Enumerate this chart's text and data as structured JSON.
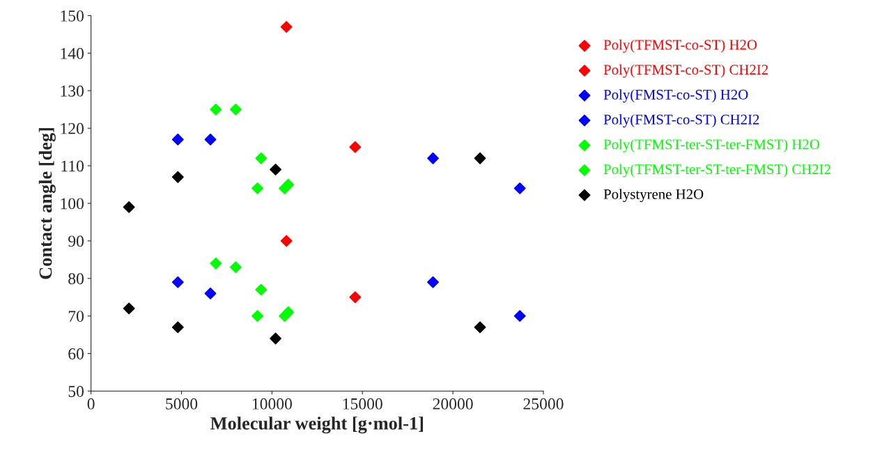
{
  "chart_data": {
    "type": "scatter",
    "xlabel": "Molecular weight [g·mol-1]",
    "ylabel": "Contact angle [deg]",
    "xlim": [
      0,
      25000
    ],
    "ylim": [
      50,
      150
    ],
    "xticks": [
      0,
      5000,
      10000,
      15000,
      20000,
      25000
    ],
    "yticks": [
      50,
      60,
      70,
      80,
      90,
      100,
      110,
      120,
      130,
      140,
      150
    ],
    "marker": "diamond",
    "grid": false,
    "legend": "right",
    "series": [
      {
        "name": "Poly(TFMST-co-ST) H2O",
        "color": "#ff0000",
        "x": [
          10800,
          14600
        ],
        "values": [
          147,
          115
        ]
      },
      {
        "name": "Poly(TFMST-co-ST) CH2I2",
        "color": "#ff0000",
        "x": [
          10800,
          14600
        ],
        "values": [
          90,
          75
        ]
      },
      {
        "name": "Poly(FMST-co-ST) H2O",
        "color": "#0000ff",
        "x": [
          4800,
          6600,
          18900,
          23700
        ],
        "values": [
          117,
          117,
          112,
          104
        ]
      },
      {
        "name": "Poly(FMST-co-ST) CH2I2",
        "color": "#0000ff",
        "x": [
          4800,
          6600,
          18900,
          23700
        ],
        "values": [
          79,
          76,
          79,
          70
        ]
      },
      {
        "name": "Poly(TFMST-ter-ST-ter-FMST) H2O",
        "color": "#00ff00",
        "x": [
          6900,
          8000,
          9400,
          9200,
          10700,
          10900
        ],
        "values": [
          125,
          125,
          112,
          104,
          104,
          105
        ]
      },
      {
        "name": "Poly(TFMST-ter-ST-ter-FMST) CH2I2",
        "color": "#00ff00",
        "x": [
          6900,
          8000,
          9400,
          9200,
          10700,
          10900
        ],
        "values": [
          84,
          83,
          77,
          70,
          70,
          71
        ]
      },
      {
        "name": "Polystyrene H2O",
        "color": "#000000",
        "x": [
          2100,
          4800,
          10200,
          21500
        ],
        "values": [
          99,
          107,
          109,
          112
        ]
      },
      {
        "color": "#000000",
        "x": [
          2100,
          4800,
          10200,
          21500
        ],
        "values": [
          72,
          67,
          64,
          67
        ]
      }
    ]
  }
}
